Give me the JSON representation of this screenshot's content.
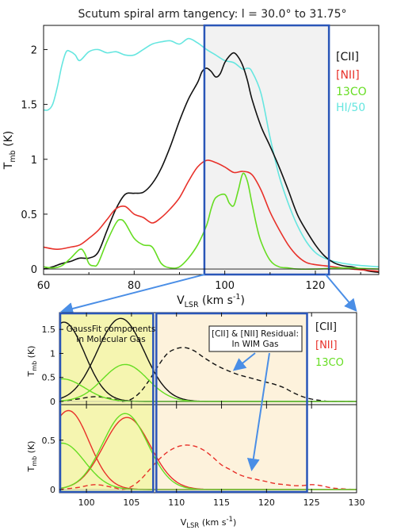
{
  "title": "Scutum spiral arm tangency: l = 30.0° to 31.75°",
  "colors": {
    "cii": "#111111",
    "nii": "#e8312a",
    "co": "#66dd22",
    "hi": "#66e6e0",
    "box": "#2a56b8",
    "arrow": "#4a8ee6",
    "shade_top": "#f2f2f2",
    "shade_mol": "#f5f5b0",
    "shade_wim": "#fdf2dc"
  },
  "top": {
    "x_ticks": [
      "60",
      "80",
      "100",
      "120"
    ],
    "y_ticks": [
      "0",
      "0.5",
      "1",
      "1.5",
      "2"
    ],
    "xlabel": "V",
    "xlabel_sub": "LSR",
    "xlabel_unit": " (km s",
    "xlabel_sup": "-1",
    "xlabel_end": ")",
    "ylabel": "T",
    "ylabel_sub": "mb",
    "ylabel_unit": " (K)",
    "legend": [
      "[CII]",
      "[NII]",
      "13CO",
      "HI/50"
    ]
  },
  "bottom": {
    "x_ticks": [
      "100",
      "105",
      "110",
      "115",
      "120",
      "125",
      "130"
    ],
    "y_ticks_top": [
      "0",
      "0.5",
      "1",
      "1.5"
    ],
    "y_ticks_bot": [
      "0",
      "0.5"
    ],
    "ylabel": "T",
    "ylabel_sub": "mb",
    "ylabel_unit": " (K)",
    "xlabel": "V",
    "xlabel_sub": "LSR",
    "xlabel_unit": " (km s",
    "xlabel_sup": "-1",
    "xlabel_end": ")",
    "legend": [
      "[CII]",
      "[NII]",
      "13CO"
    ],
    "note_mol": [
      "GaussFit components",
      "In Molecular Gas"
    ],
    "note_wim": [
      "[CII] & [NII] Residual:",
      "In WIM Gas"
    ]
  },
  "chart_data": [
    {
      "type": "line",
      "title": "Scutum spiral arm tangency: l = 30.0° to 31.75°",
      "xlabel": "V_LSR (km s^-1)",
      "ylabel": "T_mb (K)",
      "xlim": [
        60,
        134
      ],
      "ylim": [
        -0.05,
        2.22
      ],
      "highlight_range": [
        95.5,
        123
      ],
      "series": [
        {
          "name": "[CII]",
          "color": "#111111",
          "x": [
            60,
            62,
            64,
            66,
            68,
            70,
            72,
            74,
            76,
            78,
            80,
            82,
            84,
            86,
            88,
            90,
            92,
            94,
            95,
            96,
            97,
            98,
            99,
            100,
            101,
            102,
            103,
            104,
            105,
            106,
            108,
            110,
            112,
            114,
            116,
            118,
            120,
            122,
            124,
            126,
            128,
            130,
            132,
            134
          ],
          "y": [
            0.0,
            0.02,
            0.05,
            0.07,
            0.1,
            0.1,
            0.15,
            0.35,
            0.55,
            0.68,
            0.69,
            0.7,
            0.78,
            0.92,
            1.12,
            1.35,
            1.55,
            1.7,
            1.8,
            1.83,
            1.8,
            1.75,
            1.78,
            1.88,
            1.94,
            1.97,
            1.93,
            1.85,
            1.72,
            1.55,
            1.3,
            1.12,
            0.93,
            0.72,
            0.5,
            0.35,
            0.22,
            0.12,
            0.06,
            0.03,
            0.02,
            0.0,
            -0.02,
            -0.03
          ]
        },
        {
          "name": "[NII]",
          "color": "#e8312a",
          "x": [
            60,
            63,
            66,
            68,
            70,
            72,
            74,
            76,
            78,
            80,
            82,
            84,
            86,
            88,
            90,
            92,
            94,
            96,
            98,
            100,
            102,
            104,
            106,
            108,
            110,
            112,
            114,
            116,
            118,
            120,
            122,
            124,
            128,
            134
          ],
          "y": [
            0.2,
            0.18,
            0.2,
            0.22,
            0.28,
            0.35,
            0.45,
            0.55,
            0.57,
            0.5,
            0.47,
            0.42,
            0.47,
            0.55,
            0.65,
            0.8,
            0.93,
            0.99,
            0.97,
            0.93,
            0.88,
            0.89,
            0.86,
            0.72,
            0.52,
            0.36,
            0.22,
            0.12,
            0.06,
            0.04,
            0.03,
            0.02,
            0.0,
            -0.02
          ]
        },
        {
          "name": "13CO",
          "color": "#66dd22",
          "x": [
            60,
            62,
            64,
            66,
            68,
            69,
            70,
            71,
            72,
            74,
            76,
            77,
            78,
            80,
            82,
            84,
            86,
            88,
            90,
            92,
            94,
            96,
            97,
            98,
            100,
            101,
            102,
            103,
            104,
            105,
            106,
            107,
            108,
            110,
            112,
            114,
            116,
            120,
            126,
            134
          ],
          "y": [
            0.02,
            0.01,
            0.03,
            0.1,
            0.18,
            0.15,
            0.05,
            0.03,
            0.05,
            0.25,
            0.42,
            0.45,
            0.42,
            0.28,
            0.22,
            0.2,
            0.05,
            0.01,
            0.02,
            0.1,
            0.22,
            0.4,
            0.55,
            0.65,
            0.68,
            0.6,
            0.58,
            0.72,
            0.87,
            0.8,
            0.6,
            0.4,
            0.25,
            0.08,
            0.02,
            0.01,
            0.0,
            0.0,
            0.01,
            0.0
          ]
        },
        {
          "name": "HI/50",
          "color": "#66e6e0",
          "x": [
            60,
            61,
            62,
            63,
            64,
            65,
            66,
            67,
            68,
            70,
            72,
            74,
            76,
            78,
            80,
            82,
            84,
            86,
            88,
            90,
            92,
            94,
            96,
            98,
            100,
            102,
            104,
            105,
            106,
            108,
            110,
            112,
            114,
            116,
            118,
            120,
            122,
            124,
            128,
            134
          ],
          "y": [
            1.45,
            1.45,
            1.5,
            1.65,
            1.85,
            1.98,
            1.98,
            1.95,
            1.9,
            1.98,
            2.0,
            1.97,
            1.98,
            1.95,
            1.95,
            2.0,
            2.05,
            2.07,
            2.08,
            2.05,
            2.1,
            2.06,
            2.0,
            1.95,
            1.9,
            1.88,
            1.82,
            1.83,
            1.8,
            1.6,
            1.2,
            0.85,
            0.6,
            0.4,
            0.25,
            0.15,
            0.1,
            0.07,
            0.04,
            0.02
          ]
        }
      ]
    },
    {
      "type": "line",
      "xlabel": "V_LSR (km s^-1)",
      "ylabel": "T_mb (K)",
      "xlim": [
        97,
        130
      ],
      "ylim": [
        0,
        1.85
      ],
      "regions": {
        "molecular": [
          97,
          107.5
        ],
        "wim": [
          107.5,
          124.5
        ]
      },
      "series": [
        {
          "name": "[CII] fit 1",
          "color": "#111111",
          "line": "solid",
          "mean": 97.5,
          "sigma": 2.3,
          "amp": 1.65
        },
        {
          "name": "[CII] fit 2",
          "color": "#111111",
          "line": "solid",
          "mean": 103.8,
          "sigma": 2.6,
          "amp": 1.73
        },
        {
          "name": "[CII] residual",
          "color": "#111111",
          "line": "dashed",
          "x": [
            97,
            99,
            101,
            103,
            104,
            105,
            106,
            107,
            108,
            109,
            110,
            111,
            112,
            113,
            114,
            115,
            116,
            117,
            118,
            119,
            120,
            121,
            122,
            123,
            124,
            125,
            126,
            127,
            128,
            130
          ],
          "y": [
            0.0,
            0.05,
            0.1,
            0.05,
            0.0,
            0.05,
            0.2,
            0.45,
            0.75,
            1.0,
            1.1,
            1.12,
            1.05,
            0.92,
            0.8,
            0.7,
            0.62,
            0.55,
            0.5,
            0.45,
            0.4,
            0.35,
            0.28,
            0.18,
            0.1,
            0.05,
            0.02,
            0.0,
            0.0,
            0.0
          ]
        },
        {
          "name": "13CO fit 1",
          "color": "#66dd22",
          "line": "solid",
          "mean": 97.3,
          "sigma": 2.5,
          "amp": 0.47
        },
        {
          "name": "13CO fit 2",
          "color": "#66dd22",
          "line": "solid",
          "mean": 104.3,
          "sigma": 2.5,
          "amp": 0.77
        }
      ]
    },
    {
      "type": "line",
      "xlabel": "V_LSR (km s^-1)",
      "ylabel": "T_mb (K)",
      "xlim": [
        97,
        130
      ],
      "ylim": [
        0,
        0.86
      ],
      "series": [
        {
          "name": "[NII] fit 1",
          "color": "#e8312a",
          "line": "solid",
          "mean": 98.0,
          "sigma": 2.3,
          "amp": 0.8
        },
        {
          "name": "[NII] fit 2",
          "color": "#e8312a",
          "line": "solid",
          "mean": 104.5,
          "sigma": 2.6,
          "amp": 0.73
        },
        {
          "name": "[NII] residual",
          "color": "#e8312a",
          "line": "dashed",
          "x": [
            97,
            99,
            101,
            103,
            104,
            105,
            106,
            107,
            108,
            109,
            110,
            111,
            112,
            113,
            114,
            115,
            116,
            117,
            118,
            119,
            120,
            121,
            122,
            123,
            124,
            125,
            126,
            127,
            128,
            130
          ],
          "y": [
            0.0,
            0.02,
            0.05,
            0.02,
            0.0,
            0.03,
            0.1,
            0.2,
            0.3,
            0.38,
            0.43,
            0.45,
            0.44,
            0.4,
            0.33,
            0.25,
            0.2,
            0.15,
            0.12,
            0.1,
            0.08,
            0.06,
            0.05,
            0.04,
            0.04,
            0.05,
            0.04,
            0.02,
            0.01,
            0.0
          ]
        },
        {
          "name": "13CO fit 1",
          "color": "#66dd22",
          "line": "solid",
          "mean": 97.3,
          "sigma": 2.5,
          "amp": 0.47
        },
        {
          "name": "13CO fit 2",
          "color": "#66dd22",
          "line": "solid",
          "mean": 104.3,
          "sigma": 2.5,
          "amp": 0.77
        }
      ]
    }
  ]
}
